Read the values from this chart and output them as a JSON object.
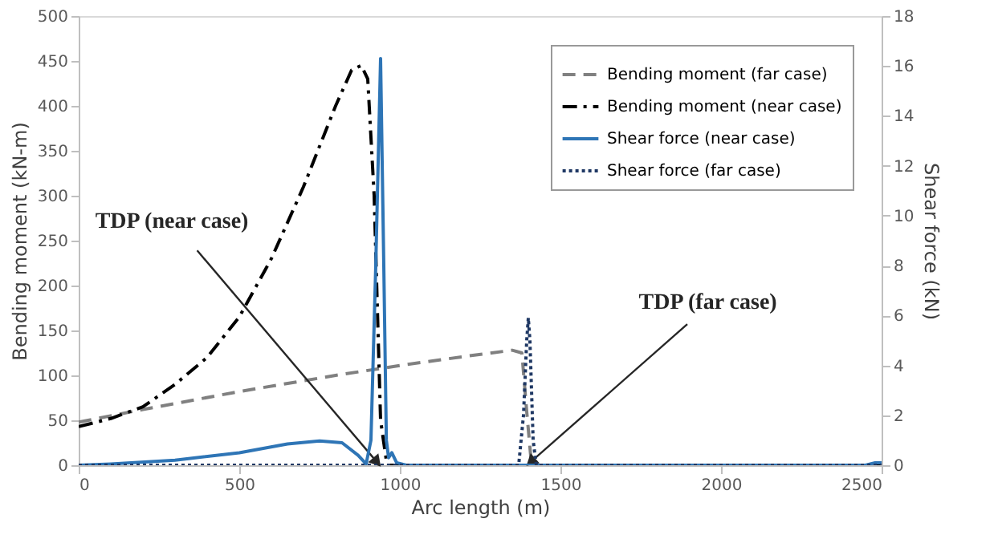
{
  "chart_data": {
    "type": "line",
    "xlabel": "Arc length (m)",
    "ylabel": "Bending moment  (kN-m)",
    "y2label": "Shear force (kN)",
    "xlim": [
      0,
      2500
    ],
    "xticks": [
      0,
      500,
      1000,
      1500,
      2000,
      2500
    ],
    "ylim": [
      0,
      500
    ],
    "yticks": [
      0,
      50,
      100,
      150,
      200,
      250,
      300,
      350,
      400,
      450,
      500
    ],
    "y2lim": [
      0,
      18
    ],
    "y2ticks": [
      0,
      2,
      4,
      6,
      8,
      10,
      12,
      14,
      16,
      18
    ],
    "grid": false,
    "legend": "top right",
    "marker": "none",
    "series": [
      {
        "name": "Bending moment (far case)",
        "color": "#808080",
        "line_style": "dashed",
        "x": [
          0,
          200,
          500,
          800,
          1000,
          1200,
          1350,
          1380,
          1395,
          1410,
          2500
        ],
        "values": [
          48,
          62,
          82,
          100,
          111,
          121,
          128,
          125,
          60,
          0,
          0
        ]
      },
      {
        "name": "Bending moment (near case)",
        "color": "#000000",
        "line_style": "dashdot",
        "x": [
          0,
          100,
          200,
          300,
          400,
          500,
          600,
          700,
          800,
          850,
          880,
          900,
          920,
          940,
          960,
          2500
        ],
        "values": [
          43,
          52,
          65,
          90,
          120,
          165,
          230,
          310,
          400,
          440,
          445,
          430,
          300,
          50,
          0,
          0
        ]
      },
      {
        "name": "Shear force (near case)",
        "color": "#2e75b6",
        "line_style": "solid",
        "axis": "y2",
        "x": [
          0,
          100,
          300,
          500,
          650,
          750,
          820,
          870,
          895,
          910,
          925,
          940,
          950,
          958,
          965,
          975,
          990,
          1020,
          2450,
          2480,
          2500
        ],
        "values": [
          0,
          0.05,
          0.2,
          0.5,
          0.85,
          0.97,
          0.9,
          0.4,
          0.05,
          1,
          8,
          16.3,
          8,
          1,
          0.3,
          0.5,
          0.1,
          0,
          0,
          0.1,
          0.1
        ]
      },
      {
        "name": "Shear force (far case)",
        "color": "#1f3864",
        "line_style": "dotted",
        "axis": "y2",
        "x": [
          0,
          1370,
          1385,
          1395,
          1400,
          1405,
          1415,
          1425,
          2500
        ],
        "values": [
          0,
          0,
          2,
          5,
          5.9,
          5,
          1,
          0,
          0
        ]
      }
    ],
    "annotations": [
      {
        "text": "TDP (near case)",
        "x": 925,
        "y": 5
      },
      {
        "text": "TDP (far case)",
        "x": 1412,
        "y": 5
      }
    ]
  }
}
